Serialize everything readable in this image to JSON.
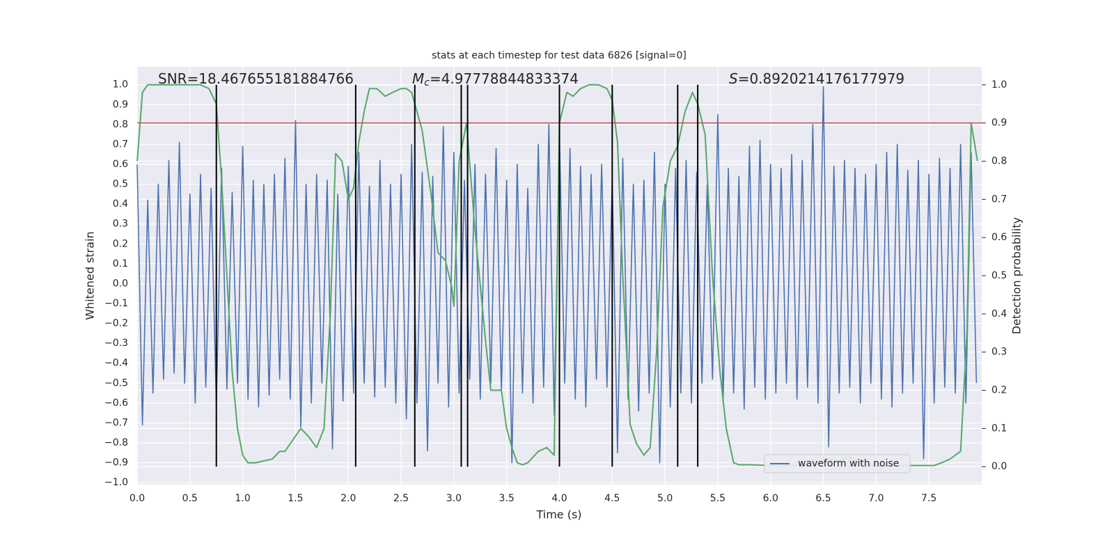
{
  "chart_data": {
    "type": "line",
    "title": "stats at each timestep for test data 6826 [signal=0]",
    "xlabel": "Time (s)",
    "ylabel": "Whitened strain",
    "y2label": "Detection probability",
    "annotations": [
      {
        "text": "SNR=18.467655181884766"
      },
      {
        "symbol": "M",
        "subscript": "c",
        "text": "=4.97778844833374"
      },
      {
        "symbol": "S",
        "text": "=0.8920214176177979"
      }
    ],
    "xlim": [
      0,
      8.0
    ],
    "ylim": [
      -1.01,
      1.09
    ],
    "y2lim": [
      -0.047,
      1.047
    ],
    "xticks": [
      {
        "value": 0,
        "label": "0.0"
      },
      {
        "value": 0.5,
        "label": "0.5"
      },
      {
        "value": 1,
        "label": "1.0"
      },
      {
        "value": 1.5,
        "label": "1.5"
      },
      {
        "value": 2,
        "label": "2.0"
      },
      {
        "value": 2.5,
        "label": "2.5"
      },
      {
        "value": 3,
        "label": "3.0"
      },
      {
        "value": 3.5,
        "label": "3.5"
      },
      {
        "value": 4,
        "label": "4.0"
      },
      {
        "value": 4.5,
        "label": "4.5"
      },
      {
        "value": 5,
        "label": "5.0"
      },
      {
        "value": 5.5,
        "label": "5.5"
      },
      {
        "value": 6,
        "label": "6.0"
      },
      {
        "value": 6.5,
        "label": "6.5"
      },
      {
        "value": 7,
        "label": "7.0"
      },
      {
        "value": 7.5,
        "label": "7.5"
      }
    ],
    "yticks": [
      {
        "value": -1,
        "label": "−1.0"
      },
      {
        "value": -0.9,
        "label": "−0.9"
      },
      {
        "value": -0.8,
        "label": "−0.8"
      },
      {
        "value": -0.7,
        "label": "−0.7"
      },
      {
        "value": -0.6,
        "label": "−0.6"
      },
      {
        "value": -0.5,
        "label": "−0.5"
      },
      {
        "value": -0.4,
        "label": "−0.4"
      },
      {
        "value": -0.3,
        "label": "−0.3"
      },
      {
        "value": -0.2,
        "label": "−0.2"
      },
      {
        "value": -0.1,
        "label": "−0.1"
      },
      {
        "value": 0,
        "label": "0.0"
      },
      {
        "value": 0.1,
        "label": "0.1"
      },
      {
        "value": 0.2,
        "label": "0.2"
      },
      {
        "value": 0.3,
        "label": "0.3"
      },
      {
        "value": 0.4,
        "label": "0.4"
      },
      {
        "value": 0.5,
        "label": "0.5"
      },
      {
        "value": 0.6,
        "label": "0.6"
      },
      {
        "value": 0.7,
        "label": "0.7"
      },
      {
        "value": 0.8,
        "label": "0.8"
      },
      {
        "value": 0.9,
        "label": "0.9"
      },
      {
        "value": 1,
        "label": "1.0"
      }
    ],
    "y2ticks": [
      {
        "value": 0,
        "label": "0.0"
      },
      {
        "value": 0.1,
        "label": "0.1"
      },
      {
        "value": 0.2,
        "label": "0.2"
      },
      {
        "value": 0.3,
        "label": "0.3"
      },
      {
        "value": 0.4,
        "label": "0.4"
      },
      {
        "value": 0.5,
        "label": "0.5"
      },
      {
        "value": 0.6,
        "label": "0.6"
      },
      {
        "value": 0.7,
        "label": "0.7"
      },
      {
        "value": 0.8,
        "label": "0.8"
      },
      {
        "value": 0.9,
        "label": "0.9"
      },
      {
        "value": 1,
        "label": "1.0"
      }
    ],
    "grid": true,
    "legend": "lower right",
    "threshold": {
      "value": 0.9,
      "axis": "y2",
      "color": "#c44e52"
    },
    "vlines": {
      "x": [
        0.75,
        2.07,
        2.63,
        3.07,
        3.13,
        4.0,
        4.5,
        5.12,
        5.31
      ],
      "color": "#000000"
    },
    "series": [
      {
        "name": "waveform with noise",
        "color": "#4c72b0",
        "x": [
          0,
          0.05,
          0.1,
          0.15,
          0.2,
          0.25,
          0.3,
          0.35,
          0.4,
          0.45,
          0.5,
          0.55,
          0.6,
          0.65,
          0.7,
          0.75,
          0.8,
          0.85,
          0.9,
          0.95,
          1,
          1.05,
          1.1,
          1.15,
          1.2,
          1.25,
          1.3,
          1.35,
          1.4,
          1.45,
          1.5,
          1.55,
          1.6,
          1.65,
          1.7,
          1.75,
          1.8,
          1.85,
          1.9,
          1.95,
          2,
          2.05,
          2.1,
          2.15,
          2.2,
          2.25,
          2.3,
          2.35,
          2.4,
          2.45,
          2.5,
          2.55,
          2.6,
          2.65,
          2.7,
          2.75,
          2.8,
          2.85,
          2.9,
          2.95,
          3,
          3.05,
          3.1,
          3.15,
          3.2,
          3.25,
          3.3,
          3.35,
          3.4,
          3.45,
          3.5,
          3.55,
          3.6,
          3.65,
          3.7,
          3.75,
          3.8,
          3.85,
          3.9,
          3.95,
          4,
          4.05,
          4.1,
          4.15,
          4.2,
          4.25,
          4.3,
          4.35,
          4.4,
          4.45,
          4.5,
          4.55,
          4.6,
          4.65,
          4.7,
          4.75,
          4.8,
          4.85,
          4.9,
          4.95,
          5,
          5.05,
          5.1,
          5.15,
          5.2,
          5.25,
          5.3,
          5.35,
          5.4,
          5.45,
          5.5,
          5.55,
          5.6,
          5.65,
          5.7,
          5.75,
          5.8,
          5.85,
          5.9,
          5.95,
          6,
          6.05,
          6.1,
          6.15,
          6.2,
          6.25,
          6.3,
          6.35,
          6.4,
          6.45,
          6.5,
          6.55,
          6.6,
          6.65,
          6.7,
          6.75,
          6.8,
          6.85,
          6.9,
          6.95,
          7,
          7.05,
          7.1,
          7.15,
          7.2,
          7.25,
          7.3,
          7.35,
          7.4,
          7.45,
          7.5,
          7.55,
          7.6,
          7.65,
          7.7,
          7.75,
          7.8,
          7.85,
          7.9,
          7.95
        ],
        "values": [
          0.6,
          -0.71,
          0.42,
          -0.55,
          0.5,
          -0.48,
          0.62,
          -0.45,
          0.71,
          -0.5,
          0.45,
          -0.6,
          0.55,
          -0.52,
          0.48,
          -0.61,
          0.58,
          -0.53,
          0.46,
          -0.5,
          0.69,
          -0.58,
          0.52,
          -0.62,
          0.5,
          -0.56,
          0.55,
          -0.48,
          0.63,
          -0.58,
          0.82,
          -0.72,
          0.5,
          -0.6,
          0.55,
          -0.5,
          0.52,
          -0.83,
          0.45,
          -0.59,
          0.59,
          -0.55,
          0.66,
          -0.5,
          0.49,
          -0.57,
          0.62,
          -0.52,
          0.5,
          -0.6,
          0.55,
          -0.68,
          0.7,
          -0.6,
          0.56,
          -0.84,
          0.54,
          -0.5,
          0.79,
          -0.62,
          0.66,
          -0.55,
          0.52,
          -0.48,
          0.6,
          -0.58,
          0.55,
          -0.5,
          0.68,
          -0.54,
          0.52,
          -0.9,
          0.6,
          -0.55,
          0.48,
          -0.6,
          0.7,
          -0.52,
          0.8,
          -0.66,
          0.74,
          -0.5,
          0.68,
          -0.58,
          0.59,
          -0.62,
          0.55,
          -0.48,
          0.6,
          -0.52,
          0.53,
          -0.85,
          0.63,
          -0.58,
          0.5,
          -0.64,
          0.52,
          -0.55,
          0.66,
          -0.9,
          0.5,
          -0.62,
          0.58,
          -0.55,
          0.62,
          -0.6,
          0.56,
          -0.5,
          0.5,
          -0.48,
          0.85,
          -0.6,
          0.58,
          -0.55,
          0.54,
          -0.63,
          0.69,
          -0.52,
          0.72,
          -0.58,
          0.6,
          -0.55,
          0.58,
          -0.5,
          0.65,
          -0.58,
          0.62,
          -0.52,
          0.8,
          -0.6,
          0.99,
          -0.82,
          0.59,
          -0.55,
          0.62,
          -0.52,
          0.58,
          -0.6,
          0.55,
          -0.5,
          0.6,
          -0.58,
          0.66,
          -0.62,
          0.7,
          -0.55,
          0.57,
          -0.5,
          0.62,
          -0.88,
          0.55,
          -0.6,
          0.63,
          -0.52,
          0.58,
          -0.55,
          0.7,
          -0.6,
          0.66,
          -0.5
        ]
      },
      {
        "color": "#55a868",
        "axis": "y2",
        "x": [
          0,
          0.05,
          0.1,
          0.2,
          0.4,
          0.6,
          0.68,
          0.75,
          0.8,
          0.85,
          0.9,
          0.95,
          1.0,
          1.05,
          1.12,
          1.2,
          1.28,
          1.35,
          1.4,
          1.45,
          1.55,
          1.62,
          1.7,
          1.77,
          1.83,
          1.88,
          1.94,
          2.0,
          2.05,
          2.1,
          2.15,
          2.2,
          2.27,
          2.35,
          2.42,
          2.5,
          2.55,
          2.6,
          2.63,
          2.7,
          2.78,
          2.85,
          2.92,
          2.98,
          3.0,
          3.05,
          3.12,
          3.2,
          3.3,
          3.35,
          3.45,
          3.5,
          3.55,
          3.6,
          3.65,
          3.7,
          3.8,
          3.88,
          3.95,
          4.0,
          4.07,
          4.13,
          4.2,
          4.28,
          4.37,
          4.45,
          4.5,
          4.55,
          4.6,
          4.67,
          4.73,
          4.8,
          4.86,
          4.92,
          4.98,
          5.05,
          5.12,
          5.19,
          5.26,
          5.31,
          5.38,
          5.45,
          5.52,
          5.58,
          5.65,
          5.7,
          5.8,
          6.0,
          6.2,
          6.4,
          6.5,
          6.55,
          6.65,
          6.75,
          6.8,
          6.9,
          7.0,
          7.2,
          7.45,
          7.55,
          7.62,
          7.7,
          7.8,
          7.86,
          7.9,
          7.96
        ],
        "values": [
          0.8,
          0.98,
          1.0,
          1.0,
          1.0,
          1.0,
          0.99,
          0.95,
          0.75,
          0.5,
          0.25,
          0.1,
          0.03,
          0.01,
          0.01,
          0.015,
          0.02,
          0.04,
          0.04,
          0.06,
          0.1,
          0.08,
          0.05,
          0.1,
          0.4,
          0.82,
          0.8,
          0.7,
          0.73,
          0.85,
          0.93,
          0.99,
          0.99,
          0.97,
          0.98,
          0.99,
          0.99,
          0.98,
          0.95,
          0.88,
          0.72,
          0.56,
          0.54,
          0.47,
          0.42,
          0.8,
          0.9,
          0.62,
          0.33,
          0.2,
          0.2,
          0.1,
          0.05,
          0.01,
          0.005,
          0.01,
          0.04,
          0.05,
          0.03,
          0.9,
          0.98,
          0.97,
          0.99,
          1.0,
          1.0,
          0.99,
          0.96,
          0.85,
          0.5,
          0.11,
          0.06,
          0.03,
          0.05,
          0.3,
          0.68,
          0.8,
          0.84,
          0.93,
          0.98,
          0.95,
          0.87,
          0.5,
          0.25,
          0.1,
          0.01,
          0.005,
          0.005,
          0.003,
          0.003,
          0.003,
          0.01,
          0.02,
          0.015,
          0.025,
          0.015,
          0.005,
          0.003,
          0.003,
          0.003,
          0.003,
          0.01,
          0.02,
          0.04,
          0.35,
          0.9,
          0.8
        ]
      }
    ]
  }
}
